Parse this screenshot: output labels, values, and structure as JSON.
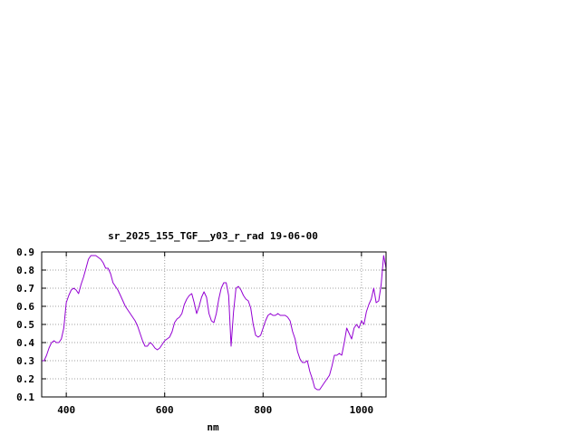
{
  "chart_data": {
    "type": "line",
    "title": "sr_2025_155_TGF__y03_r_rad 19-06-00",
    "xlabel": "nm",
    "ylabel": "",
    "xlim": [
      350,
      1050
    ],
    "ylim": [
      0.1,
      0.9
    ],
    "x_ticks": [
      400,
      600,
      800,
      1000
    ],
    "y_ticks": [
      0.1,
      0.2,
      0.3,
      0.4,
      0.5,
      0.6,
      0.7,
      0.8,
      0.9
    ],
    "x_tick_labels": [
      "400",
      "600",
      "800",
      "1000"
    ],
    "y_tick_labels": [
      "0.1",
      "0.2",
      "0.3",
      "0.4",
      "0.5",
      "0.6",
      "0.7",
      "0.8",
      "0.9"
    ],
    "grid": true,
    "line_color": "#9400d3",
    "series": [
      {
        "x": [
          350,
          355,
          360,
          365,
          370,
          375,
          380,
          385,
          390,
          395,
          400,
          405,
          410,
          415,
          420,
          425,
          430,
          435,
          440,
          445,
          450,
          455,
          460,
          465,
          470,
          475,
          480,
          485,
          490,
          495,
          500,
          505,
          510,
          515,
          520,
          525,
          530,
          535,
          540,
          545,
          550,
          555,
          560,
          565,
          570,
          575,
          580,
          585,
          590,
          595,
          600,
          605,
          610,
          615,
          620,
          625,
          630,
          635,
          640,
          645,
          650,
          655,
          660,
          665,
          670,
          675,
          680,
          685,
          690,
          695,
          700,
          705,
          710,
          715,
          720,
          725,
          730,
          735,
          740,
          745,
          750,
          755,
          760,
          765,
          770,
          775,
          780,
          785,
          790,
          795,
          800,
          805,
          810,
          815,
          820,
          825,
          830,
          835,
          840,
          845,
          850,
          855,
          860,
          865,
          870,
          875,
          880,
          885,
          890,
          895,
          900,
          905,
          910,
          915,
          920,
          925,
          930,
          935,
          940,
          945,
          950,
          955,
          960,
          965,
          970,
          975,
          980,
          985,
          990,
          995,
          1000,
          1005,
          1010,
          1015,
          1020,
          1025,
          1030,
          1035,
          1040,
          1045,
          1050
        ],
        "y": [
          0.3,
          0.3,
          0.33,
          0.37,
          0.4,
          0.41,
          0.4,
          0.4,
          0.42,
          0.48,
          0.62,
          0.66,
          0.69,
          0.7,
          0.69,
          0.67,
          0.72,
          0.76,
          0.81,
          0.86,
          0.88,
          0.88,
          0.88,
          0.87,
          0.86,
          0.84,
          0.81,
          0.81,
          0.78,
          0.73,
          0.71,
          0.69,
          0.66,
          0.63,
          0.6,
          0.58,
          0.56,
          0.54,
          0.52,
          0.49,
          0.45,
          0.41,
          0.38,
          0.38,
          0.4,
          0.39,
          0.37,
          0.36,
          0.37,
          0.39,
          0.41,
          0.42,
          0.43,
          0.46,
          0.51,
          0.53,
          0.54,
          0.56,
          0.61,
          0.64,
          0.66,
          0.67,
          0.62,
          0.56,
          0.6,
          0.65,
          0.68,
          0.65,
          0.56,
          0.52,
          0.51,
          0.56,
          0.64,
          0.7,
          0.73,
          0.73,
          0.66,
          0.38,
          0.57,
          0.7,
          0.71,
          0.69,
          0.66,
          0.64,
          0.63,
          0.59,
          0.5,
          0.44,
          0.43,
          0.44,
          0.48,
          0.52,
          0.55,
          0.56,
          0.55,
          0.55,
          0.56,
          0.55,
          0.55,
          0.55,
          0.54,
          0.52,
          0.46,
          0.42,
          0.35,
          0.31,
          0.29,
          0.29,
          0.3,
          0.24,
          0.2,
          0.15,
          0.14,
          0.14,
          0.16,
          0.18,
          0.2,
          0.22,
          0.27,
          0.33,
          0.33,
          0.34,
          0.33,
          0.4,
          0.48,
          0.45,
          0.42,
          0.48,
          0.5,
          0.48,
          0.52,
          0.5,
          0.57,
          0.61,
          0.64,
          0.7,
          0.62,
          0.63,
          0.72,
          0.88,
          0.81
        ]
      }
    ]
  }
}
